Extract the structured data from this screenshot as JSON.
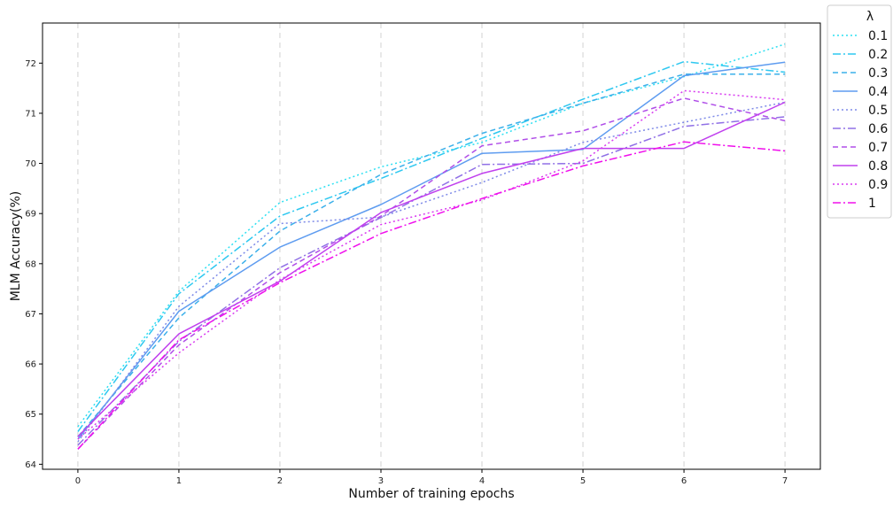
{
  "chart_data": {
    "type": "line",
    "title": "",
    "xlabel": "Number of training epochs",
    "ylabel": "MLM Accuracy(%)",
    "x": [
      0,
      1,
      2,
      3,
      4,
      5,
      6,
      7
    ],
    "xlim": [
      -0.35,
      7.35
    ],
    "ylim": [
      63.9,
      72.8
    ],
    "xticks": [
      "0",
      "1",
      "2",
      "3",
      "4",
      "5",
      "6",
      "7"
    ],
    "yticks": [
      "64",
      "65",
      "66",
      "67",
      "68",
      "69",
      "70",
      "71",
      "72"
    ],
    "grid": "vertical-dashed",
    "legend": {
      "title": "λ",
      "placement": "outside top-right"
    },
    "series": [
      {
        "name": "0.1",
        "color": "#2ee0f2",
        "dash": "dotted",
        "values": [
          64.75,
          67.45,
          69.22,
          69.93,
          70.42,
          71.2,
          71.73,
          72.38
        ]
      },
      {
        "name": "0.2",
        "color": "#2ec8f0",
        "dash": "dashdot",
        "values": [
          64.65,
          67.4,
          68.95,
          69.7,
          70.5,
          71.28,
          72.03,
          71.82
        ]
      },
      {
        "name": "0.3",
        "color": "#3bb0ea",
        "dash": "dashed",
        "values": [
          64.55,
          66.92,
          68.65,
          69.78,
          70.6,
          71.2,
          71.78,
          71.78
        ]
      },
      {
        "name": "0.4",
        "color": "#5e9cf0",
        "dash": "solid",
        "values": [
          64.5,
          67.05,
          68.33,
          69.18,
          70.2,
          70.28,
          71.75,
          72.02
        ]
      },
      {
        "name": "0.5",
        "color": "#7e8ae8",
        "dash": "dotted",
        "values": [
          64.45,
          67.15,
          68.8,
          68.93,
          69.62,
          70.42,
          70.82,
          71.22
        ]
      },
      {
        "name": "0.6",
        "color": "#9070e6",
        "dash": "dashdot",
        "values": [
          64.38,
          66.45,
          67.92,
          68.92,
          69.98,
          70.0,
          70.74,
          70.93
        ]
      },
      {
        "name": "0.7",
        "color": "#b04ee8",
        "dash": "dashed",
        "values": [
          64.3,
          66.38,
          67.82,
          68.95,
          70.35,
          70.65,
          71.3,
          70.85
        ]
      },
      {
        "name": "0.8",
        "color": "#c040ee",
        "dash": "solid",
        "values": [
          64.55,
          66.6,
          67.65,
          69.02,
          69.8,
          70.3,
          70.3,
          71.22
        ]
      },
      {
        "name": "0.9",
        "color": "#d83af0",
        "dash": "dotted",
        "values": [
          64.5,
          66.22,
          67.68,
          68.78,
          69.27,
          70.05,
          71.45,
          71.27
        ]
      },
      {
        "name": "1",
        "color": "#f010ec",
        "dash": "dashdot",
        "values": [
          64.3,
          66.48,
          67.62,
          68.6,
          69.3,
          69.95,
          70.43,
          70.25
        ]
      }
    ]
  }
}
